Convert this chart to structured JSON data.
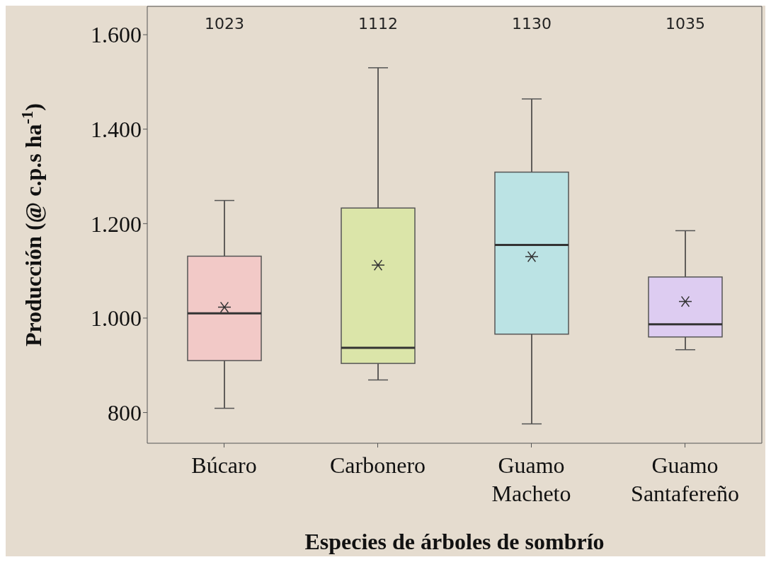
{
  "chart_data": {
    "type": "box",
    "xlabel": "Especies de árboles de sombrío",
    "ylabel": "Producción (@ c.p.s ha$^{-1}$)",
    "categories": [
      "Búcaro",
      "Carbonero",
      "Guamo Macheto",
      "Guamo Santafereño"
    ],
    "colors": [
      "#f4c6c6",
      "#d9e6a2",
      "#b4e4e8",
      "#dcc9f7"
    ],
    "boxes": [
      {
        "low": 809,
        "q1": 910,
        "median": 1010,
        "q3": 1131,
        "high": 1249,
        "mean": 1023
      },
      {
        "low": 869,
        "q1": 904,
        "median": 937,
        "q3": 1233,
        "high": 1530,
        "mean": 1112
      },
      {
        "low": 776,
        "q1": 966,
        "median": 1155,
        "q3": 1309,
        "high": 1464,
        "mean": 1130
      },
      {
        "low": 933,
        "q1": 960,
        "median": 987,
        "q3": 1087,
        "high": 1185,
        "mean": 1035
      }
    ],
    "annotations": [
      "1023",
      "1112",
      "1130",
      "1035"
    ],
    "ylim": [
      735,
      1660
    ],
    "yticks": [
      {
        "value": 800,
        "label": "800"
      },
      {
        "value": 1000,
        "label": "1.000"
      },
      {
        "value": 1200,
        "label": "1.200"
      },
      {
        "value": 1400,
        "label": "1.400"
      },
      {
        "value": 1600,
        "label": "1.600"
      }
    ]
  }
}
